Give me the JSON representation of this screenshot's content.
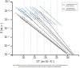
{
  "chart_data": {
    "type": "line",
    "xlabel": "1/T  (en 10⁻¹ K⁻¹)",
    "ylabel": "D (m² s⁻¹)",
    "log": "y",
    "xlim": [
      5,
      35
    ],
    "ylim": [
      1e-20,
      1e-08
    ],
    "xticks": [
      10,
      15,
      20,
      25,
      30
    ],
    "yticks": [
      {
        "value": 1e-08,
        "label": "10⁻⁸"
      },
      {
        "value": 1e-10,
        "label": "10⁻¹⁰"
      },
      {
        "value": 1e-12,
        "label": "10⁻¹²"
      },
      {
        "value": 1e-14,
        "label": "10⁻¹⁴"
      },
      {
        "value": 1e-16,
        "label": "10⁻¹⁶"
      },
      {
        "value": 1e-18,
        "label": "10⁻¹⁸"
      },
      {
        "value": 1e-20,
        "label": "10⁻²⁰"
      }
    ],
    "grid": false,
    "legend": "upper right",
    "vlines": [
      10.5,
      13.5,
      16.5,
      19.5,
      22.5,
      25.5
    ],
    "caption": "The dashed vertical lines point out some of the straight lines corresponding to\nthe melting temperatures of the element under consideration.",
    "series": [
      {
        "name": "Autodiffusion en\nl'état liquide",
        "color": "#7090b0",
        "labels": [
          "Sn",
          "Bi",
          "Pb",
          "Zn",
          "Al",
          "Cu",
          "Ag",
          "Au",
          "Ni"
        ],
        "x": [
          [
            6.5,
            12.0
          ],
          [
            7.5,
            13.5
          ],
          [
            8.5,
            14.5
          ],
          [
            9.2,
            15.5
          ],
          [
            11.0,
            18.5
          ],
          [
            13.0,
            21.5
          ],
          [
            14.0,
            23.5
          ],
          [
            15.0,
            25.0
          ],
          [
            17.5,
            27.5
          ]
        ],
        "values": [
          [
            6.309573444801932e-10,
            2.51188643150958e-12
          ],
          [
            3.981071705534972e-10,
            1e-12
          ],
          [
            3.1622776601683795e-10,
            5.011872336272722e-13
          ],
          [
            3.981071705534972e-10,
            7.943282347242815e-13
          ],
          [
            5.011872336272722e-10,
            1.9952623149688797e-13
          ],
          [
            6.309573444801932e-10,
            1e-13
          ],
          [
            6.309573444801932e-10,
            6.309573444801932e-14
          ],
          [
            5.011872336272722e-10,
            5.011872336272722e-14
          ],
          [
            1e-09,
            3.1622776601683796e-14
          ]
        ]
      },
      {
        "name": "Autodiffusion\nintergranulaire",
        "color": "#707070",
        "labels": [
          "Sn",
          "Bi",
          "Pb",
          "Zn",
          "Al",
          "Cu",
          "Ag",
          "Au",
          "Ni"
        ],
        "x": [
          [
            6.5,
            29.0
          ],
          [
            7.5,
            29.5
          ],
          [
            8.5,
            30.0
          ],
          [
            9.2,
            30.0
          ],
          [
            11.0,
            31.0
          ],
          [
            13.0,
            32.0
          ],
          [
            14.0,
            32.5
          ],
          [
            15.0,
            32.5
          ],
          [
            17.5,
            33.0
          ]
        ],
        "values": [
          [
            3.1622776601683794e-11,
            3.162277660168379e-20
          ],
          [
            1e-11,
            1.5848931924611135e-20
          ],
          [
            3.1622776601683794e-12,
            1.5848931924611135e-20
          ],
          [
            6.309573444801932e-12,
            1.5848931924611135e-20
          ],
          [
            1.5848931924611133e-11,
            1e-20
          ],
          [
            3.1622776601683794e-11,
            1e-20
          ],
          [
            3.1622776601683794e-11,
            1e-20
          ],
          [
            3.1622776601683794e-11,
            1e-20
          ],
          [
            6.309573444801932e-11,
            1e-20
          ]
        ]
      }
    ]
  }
}
